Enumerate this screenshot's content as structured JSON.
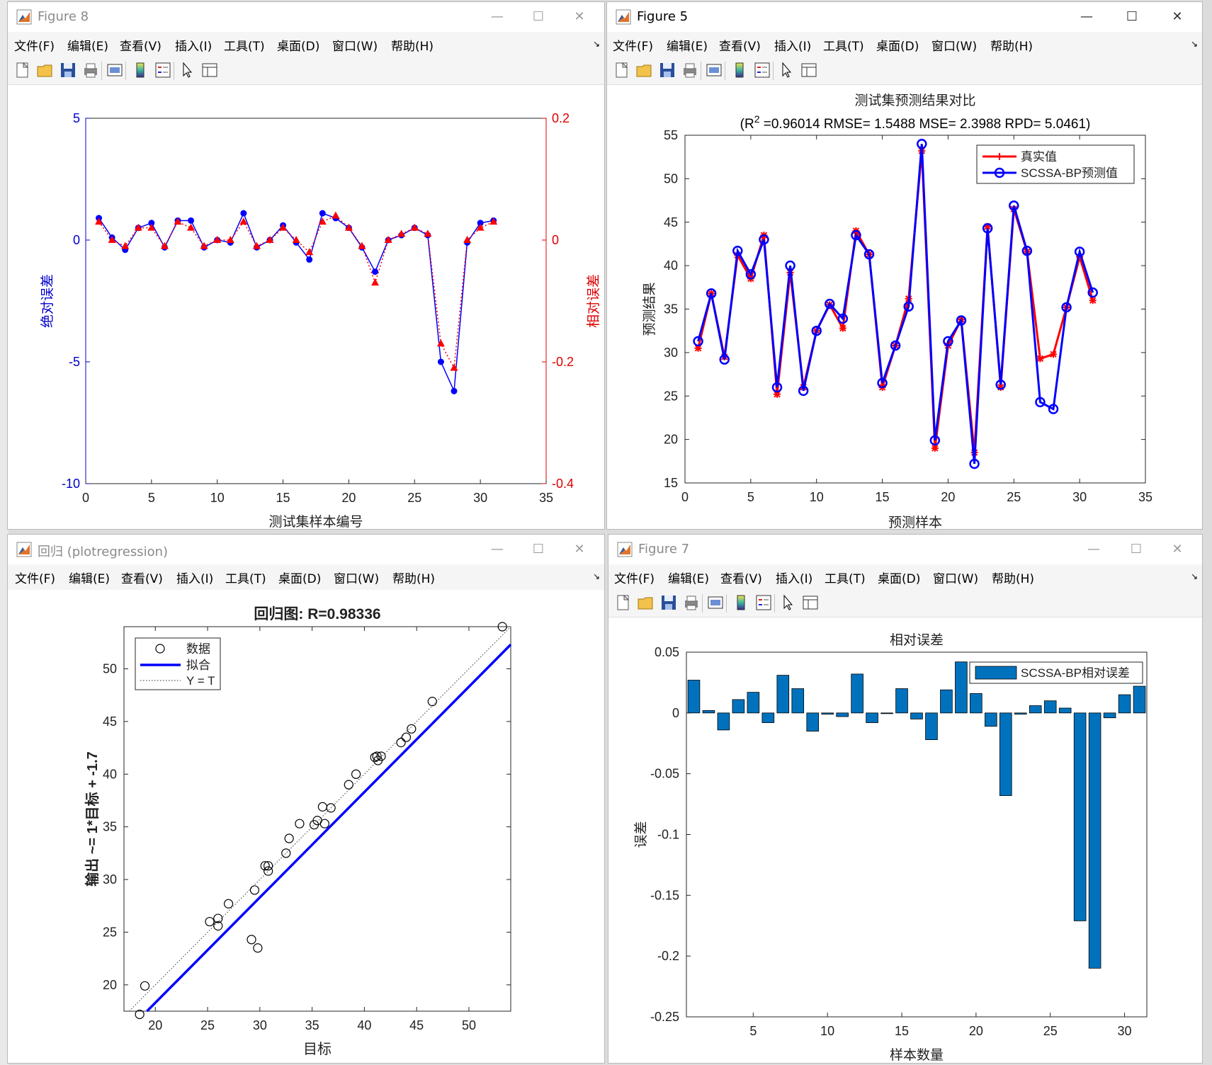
{
  "menu": [
    "文件(F)",
    "编辑(E)",
    "查看(V)",
    "插入(I)",
    "工具(T)",
    "桌面(D)",
    "窗口(W)",
    "帮助(H)"
  ],
  "windows": {
    "fig8": {
      "title": "Figure 8"
    },
    "fig5": {
      "title": "Figure 5"
    },
    "reg": {
      "title": "回归 (plotregression)"
    },
    "fig7": {
      "title": "Figure 7"
    }
  },
  "colors": {
    "blue": "#0000ff",
    "red": "#ff0000",
    "bar": "#0072bd",
    "axis_blue": "#0000cc",
    "axis_red": "#e00000"
  },
  "icons": [
    "new-file-icon",
    "open-folder-icon",
    "save-icon",
    "print-icon",
    "print-preview-icon",
    "colorbar-icon",
    "legend-icon",
    "pointer-icon",
    "property-editor-icon"
  ],
  "chart_data": [
    {
      "id": "fig8",
      "type": "line",
      "title": "",
      "xlabel": "测试集样本编号",
      "ylabel_left": "绝对误差",
      "ylabel_right": "相对误差",
      "xlim": [
        0,
        35
      ],
      "ylim_left": [
        -10,
        5
      ],
      "ylim_right": [
        -0.4,
        0.2
      ],
      "xticks": [
        "0",
        "5",
        "10",
        "15",
        "20",
        "25",
        "30",
        "35"
      ],
      "yticks_left": [
        "5",
        "0",
        "-5",
        "-10"
      ],
      "yticks_right": [
        "0.2",
        "0",
        "-0.2",
        "-0.4"
      ],
      "x": [
        1,
        2,
        3,
        4,
        5,
        6,
        7,
        8,
        9,
        10,
        11,
        12,
        13,
        14,
        15,
        16,
        17,
        18,
        19,
        20,
        21,
        22,
        23,
        24,
        25,
        26,
        27,
        28,
        29,
        30,
        31
      ],
      "series": [
        {
          "values": [
            0.9,
            0.1,
            -0.4,
            0.5,
            0.7,
            -0.3,
            0.8,
            0.8,
            -0.3,
            0.0,
            -0.1,
            1.1,
            -0.3,
            0.0,
            0.6,
            -0.1,
            -0.8,
            1.1,
            0.9,
            0.5,
            -0.3,
            -1.3,
            0.0,
            0.2,
            0.5,
            0.2,
            -5.0,
            -6.2,
            -0.1,
            0.7,
            0.8
          ]
        },
        {
          "values": [
            0.03,
            0.0,
            -0.01,
            0.02,
            0.02,
            -0.01,
            0.03,
            0.02,
            -0.01,
            0.0,
            0.0,
            0.03,
            -0.01,
            0.0,
            0.02,
            0.0,
            -0.02,
            0.03,
            0.04,
            0.02,
            -0.01,
            -0.07,
            0.0,
            0.01,
            0.02,
            0.01,
            -0.17,
            -0.21,
            0.0,
            0.02,
            0.03
          ]
        }
      ]
    },
    {
      "id": "fig5",
      "type": "line",
      "title": "测试集预测结果对比",
      "subtitle": "(R<sup>2</sup> =0.96014 RMSE= 1.5488 MSE= 2.3988 RPD= 5.0461)",
      "xlabel": "预测样本",
      "ylabel": "预测结果",
      "xlim": [
        0,
        35
      ],
      "ylim": [
        15,
        55
      ],
      "xticks": [
        "0",
        "5",
        "10",
        "15",
        "20",
        "25",
        "30",
        "35"
      ],
      "yticks": [
        "55",
        "50",
        "45",
        "40",
        "35",
        "30",
        "25",
        "20",
        "15"
      ],
      "legend": [
        "真实值",
        "SCSSA-BP预测值"
      ],
      "legend_position": "top-right",
      "x": [
        1,
        2,
        3,
        4,
        5,
        6,
        7,
        8,
        9,
        10,
        11,
        12,
        13,
        14,
        15,
        16,
        17,
        18,
        19,
        20,
        21,
        22,
        23,
        24,
        25,
        26,
        27,
        28,
        29,
        30,
        31
      ],
      "series": [
        {
          "name": "真实值",
          "values": [
            30.5,
            36.8,
            29.5,
            41.2,
            38.5,
            43.5,
            25.2,
            39.2,
            26.0,
            32.5,
            35.5,
            32.8,
            44.0,
            41.3,
            26.0,
            30.8,
            36.2,
            53.2,
            19.0,
            30.8,
            33.8,
            18.5,
            44.5,
            26.0,
            46.5,
            41.6,
            29.3,
            29.8,
            35.2,
            41.0,
            36.0
          ]
        },
        {
          "name": "SCSSA-BP预测值",
          "values": [
            31.3,
            36.8,
            29.2,
            41.7,
            39.0,
            43.0,
            26.0,
            40.0,
            25.6,
            32.5,
            35.6,
            33.9,
            43.5,
            41.3,
            26.5,
            30.8,
            35.3,
            54.0,
            19.9,
            31.3,
            33.7,
            17.2,
            44.3,
            26.3,
            46.9,
            41.7,
            24.3,
            23.5,
            35.2,
            41.6,
            36.9
          ]
        }
      ]
    },
    {
      "id": "regression",
      "type": "scatter",
      "title": "回归图: R=0.98336",
      "xlabel": "目标",
      "ylabel": "输出 ~= 1*目标 + -1.7",
      "xlim": [
        17,
        54
      ],
      "ylim": [
        17.5,
        54
      ],
      "xticks": [
        "20",
        "25",
        "30",
        "35",
        "40",
        "45",
        "50"
      ],
      "yticks": [
        "50",
        "45",
        "40",
        "35",
        "30",
        "25",
        "20"
      ],
      "legend": [
        "数据",
        "拟合",
        "Y = T"
      ],
      "legend_position": "top-left",
      "points": {
        "x": [
          19.0,
          18.5,
          25.2,
          26.0,
          26.0,
          27.0,
          29.5,
          29.2,
          29.8,
          30.5,
          30.8,
          30.8,
          32.5,
          32.8,
          33.8,
          35.2,
          35.5,
          36.0,
          36.2,
          36.8,
          38.5,
          39.2,
          41.0,
          41.2,
          41.3,
          41.6,
          43.5,
          44.0,
          44.5,
          46.5,
          53.2
        ],
        "y": [
          19.9,
          17.2,
          26.0,
          25.6,
          26.3,
          27.7,
          29.0,
          24.3,
          23.5,
          31.3,
          31.3,
          30.8,
          32.5,
          33.9,
          35.3,
          35.2,
          35.6,
          36.9,
          35.3,
          36.8,
          39.0,
          40.0,
          41.6,
          41.7,
          41.3,
          41.7,
          43.0,
          43.5,
          44.3,
          46.9,
          54.0
        ]
      },
      "fit": {
        "slope": 1.0,
        "intercept": -1.7
      }
    },
    {
      "id": "fig7",
      "type": "bar",
      "title": "相对误差",
      "xlabel": "样本数量",
      "ylabel": "误差",
      "xlim": [
        0.5,
        31.5
      ],
      "ylim": [
        -0.25,
        0.05
      ],
      "xticks": [
        "5",
        "10",
        "15",
        "20",
        "25",
        "30"
      ],
      "yticks": [
        "0.05",
        "0",
        "-0.05",
        "-0.1",
        "-0.15",
        "-0.2",
        "-0.25"
      ],
      "legend": [
        "SCSSA-BP相对误差"
      ],
      "legend_position": "top-right",
      "x": [
        1,
        2,
        3,
        4,
        5,
        6,
        7,
        8,
        9,
        10,
        11,
        12,
        13,
        14,
        15,
        16,
        17,
        18,
        19,
        20,
        21,
        22,
        23,
        24,
        25,
        26,
        27,
        28,
        29,
        30,
        31
      ],
      "values": [
        0.027,
        0.002,
        -0.014,
        0.011,
        0.017,
        -0.008,
        0.031,
        0.02,
        -0.015,
        -0.001,
        -0.003,
        0.032,
        -0.008,
        0.0,
        0.02,
        -0.005,
        -0.022,
        0.019,
        0.042,
        0.016,
        -0.011,
        -0.068,
        -0.001,
        0.006,
        0.01,
        0.004,
        -0.171,
        -0.21,
        -0.004,
        0.015,
        0.022
      ]
    }
  ]
}
